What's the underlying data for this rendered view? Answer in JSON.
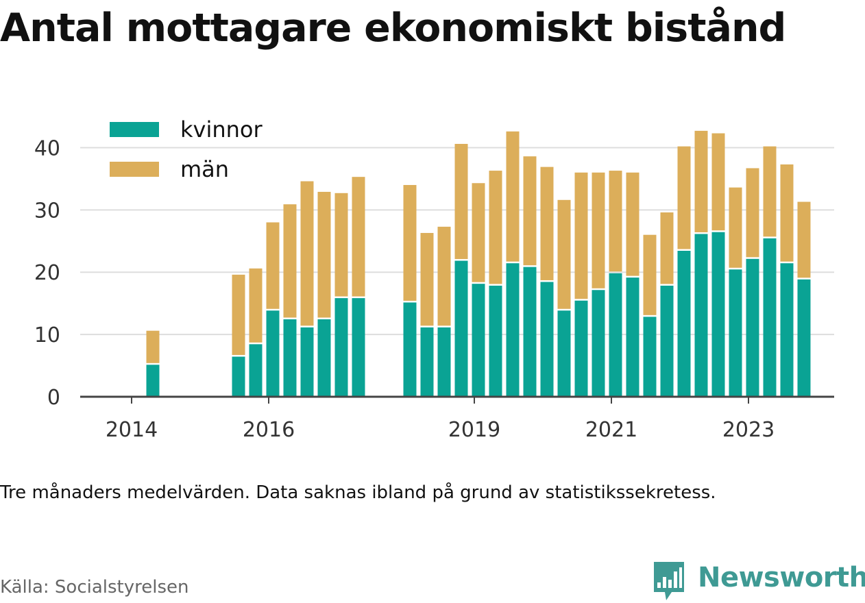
{
  "title": "Antal mottagare ekonomiskt bistånd",
  "note": "Tre månaders medelvärden. Data saknas ibland på grund av statistikssekretess.",
  "source": "Källa: Socialstyrelsen",
  "brand": {
    "name": "Newsworthy",
    "logo_icon": "bar-chart-speech-bubble-icon",
    "color": "#3f9a94"
  },
  "colors": {
    "kvinnor": "#0aa394",
    "man": "#dcae5a",
    "grid": "#dddddd",
    "axis": "#444444"
  },
  "chart_data": {
    "type": "bar",
    "stacked": true,
    "legend": {
      "position": "top-left",
      "entries": [
        "kvinnor",
        "män"
      ]
    },
    "grid": true,
    "ylim": [
      0,
      45
    ],
    "yticks": [
      0,
      10,
      20,
      30,
      40
    ],
    "xlim": [
      2013.25,
      2024.25
    ],
    "xticks": [
      {
        "value": 2014,
        "label": "2014"
      },
      {
        "value": 2016,
        "label": "2016"
      },
      {
        "value": 2019,
        "label": "2019"
      },
      {
        "value": 2021,
        "label": "2021"
      },
      {
        "value": 2023,
        "label": "2023"
      }
    ],
    "bar_width_years": 0.19,
    "x": [
      2014.31,
      2015.56,
      2015.81,
      2016.06,
      2016.31,
      2016.56,
      2016.81,
      2017.06,
      2017.31,
      2018.06,
      2018.31,
      2018.56,
      2018.81,
      2019.06,
      2019.31,
      2019.56,
      2019.81,
      2020.06,
      2020.31,
      2020.56,
      2020.81,
      2021.06,
      2021.31,
      2021.56,
      2021.81,
      2022.06,
      2022.31,
      2022.56,
      2022.81,
      2023.06,
      2023.31,
      2023.56,
      2023.81
    ],
    "series": [
      {
        "name": "kvinnor",
        "values": [
          5.3,
          6.6,
          8.6,
          14.0,
          12.6,
          11.3,
          12.6,
          16.0,
          16.0,
          15.3,
          11.3,
          11.3,
          22.0,
          18.3,
          18.0,
          21.6,
          21.0,
          18.6,
          14.0,
          15.6,
          17.3,
          20.0,
          19.3,
          13.0,
          18.0,
          23.6,
          26.3,
          26.6,
          20.6,
          22.3,
          25.6,
          21.6,
          19.0
        ]
      },
      {
        "name": "män",
        "values": [
          5.3,
          13.0,
          12.0,
          14.0,
          18.3,
          23.3,
          20.3,
          16.7,
          19.3,
          18.7,
          15.0,
          16.0,
          18.6,
          16.0,
          18.3,
          21.0,
          17.6,
          18.3,
          17.6,
          20.4,
          18.7,
          16.3,
          16.7,
          13.0,
          11.6,
          16.6,
          16.4,
          15.7,
          13.0,
          14.4,
          14.6,
          15.7,
          12.3
        ]
      }
    ]
  }
}
